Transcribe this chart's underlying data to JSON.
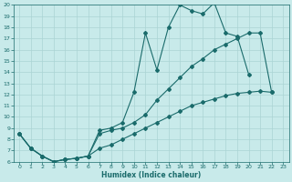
{
  "xlabel": "Humidex (Indice chaleur)",
  "bg_color": "#c8eaea",
  "line_color": "#1a6b6b",
  "grid_color": "#aad4d4",
  "xlim": [
    -0.5,
    23.5
  ],
  "ylim": [
    6,
    20
  ],
  "xticks": [
    0,
    1,
    2,
    3,
    4,
    5,
    6,
    7,
    8,
    9,
    10,
    11,
    12,
    13,
    14,
    15,
    16,
    17,
    18,
    19,
    20,
    21,
    22,
    23
  ],
  "yticks": [
    6,
    7,
    8,
    9,
    10,
    11,
    12,
    13,
    14,
    15,
    16,
    17,
    18,
    19,
    20
  ],
  "series1_x": [
    0,
    1,
    2,
    3,
    4,
    5,
    6,
    7,
    8,
    9,
    10,
    11,
    12,
    13,
    14,
    15,
    16,
    17,
    18,
    19,
    20
  ],
  "series1_y": [
    8.5,
    7.2,
    6.5,
    6.0,
    6.2,
    6.3,
    6.5,
    8.8,
    9.0,
    9.5,
    12.2,
    17.5,
    14.2,
    18.0,
    20.0,
    19.5,
    19.2,
    20.2,
    17.5,
    17.2,
    13.8
  ],
  "series2_x": [
    0,
    1,
    2,
    3,
    4,
    5,
    6,
    7,
    8,
    9,
    10,
    11,
    12,
    13,
    14,
    15,
    16,
    17,
    18,
    19,
    20,
    21,
    22
  ],
  "series2_y": [
    8.5,
    7.2,
    6.5,
    6.0,
    6.2,
    6.3,
    6.5,
    8.5,
    8.8,
    9.0,
    9.5,
    10.2,
    11.5,
    12.5,
    13.5,
    14.5,
    15.2,
    16.0,
    16.5,
    17.0,
    17.5,
    17.5,
    12.2
  ],
  "series3_x": [
    0,
    1,
    2,
    3,
    4,
    5,
    6,
    7,
    8,
    9,
    10,
    11,
    12,
    13,
    14,
    15,
    16,
    17,
    18,
    19,
    20,
    21,
    22
  ],
  "series3_y": [
    8.5,
    7.2,
    6.5,
    6.0,
    6.2,
    6.3,
    6.5,
    7.2,
    7.5,
    8.0,
    8.5,
    9.0,
    9.5,
    10.0,
    10.5,
    11.0,
    11.3,
    11.6,
    11.9,
    12.1,
    12.2,
    12.3,
    12.2
  ]
}
